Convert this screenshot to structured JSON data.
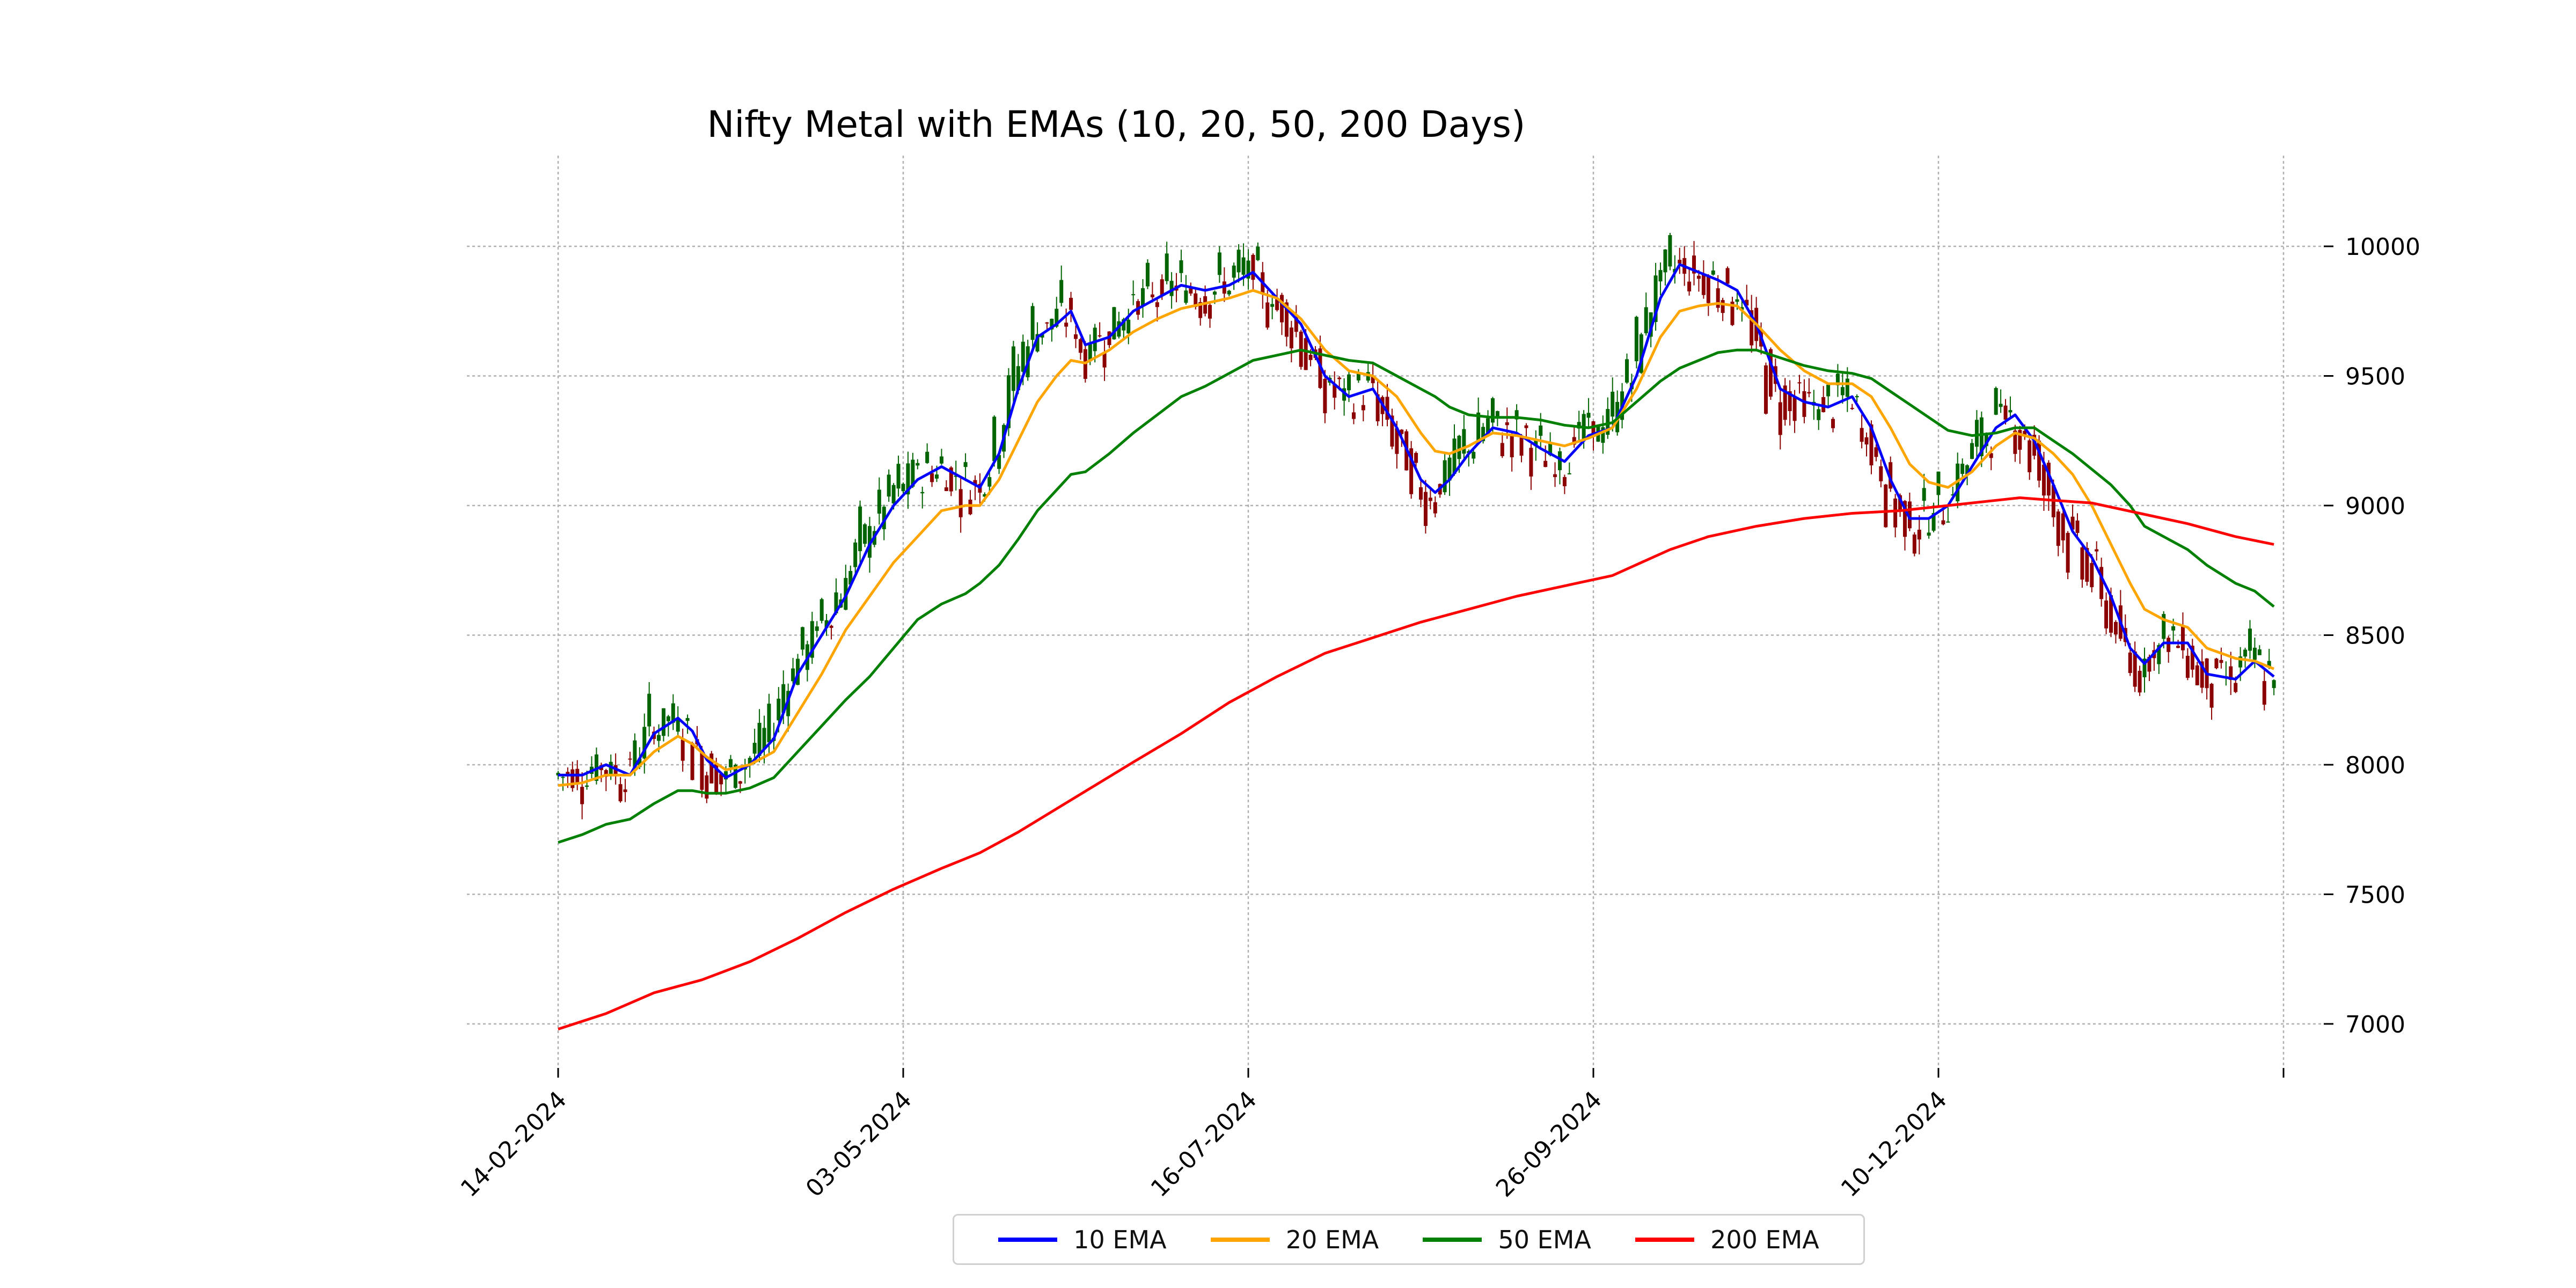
{
  "chart_data": {
    "type": "candlestick",
    "title": "Nifty Metal with EMAs (10, 20, 50, 200 Days)",
    "xlabel": "",
    "ylabel": "",
    "ylim": [
      6830,
      10350
    ],
    "yticks": [
      7000,
      7500,
      8000,
      8500,
      9000,
      9500,
      10000
    ],
    "xticks": [
      "14-02-2024",
      "03-05-2024",
      "16-07-2024",
      "26-09-2024",
      "10-12-2024",
      ""
    ],
    "grid": true,
    "legend_position": "bottom-center",
    "colors": {
      "up": "#006400",
      "down": "#8b0000",
      "grid": "#b0b0b0"
    },
    "series": [
      {
        "name": "10 EMA",
        "color": "#0000ff",
        "points": [
          [
            0,
            7960
          ],
          [
            5,
            7960
          ],
          [
            10,
            8000
          ],
          [
            15,
            7960
          ],
          [
            20,
            8120
          ],
          [
            25,
            8180
          ],
          [
            28,
            8130
          ],
          [
            31,
            8020
          ],
          [
            35,
            7950
          ],
          [
            40,
            8000
          ],
          [
            45,
            8100
          ],
          [
            50,
            8350
          ],
          [
            55,
            8500
          ],
          [
            60,
            8650
          ],
          [
            65,
            8850
          ],
          [
            70,
            9000
          ],
          [
            75,
            9100
          ],
          [
            80,
            9150
          ],
          [
            85,
            9100
          ],
          [
            88,
            9070
          ],
          [
            92,
            9200
          ],
          [
            96,
            9450
          ],
          [
            100,
            9650
          ],
          [
            104,
            9700
          ],
          [
            107,
            9750
          ],
          [
            110,
            9620
          ],
          [
            115,
            9650
          ],
          [
            120,
            9750
          ],
          [
            125,
            9800
          ],
          [
            130,
            9850
          ],
          [
            135,
            9830
          ],
          [
            140,
            9850
          ],
          [
            145,
            9900
          ],
          [
            150,
            9800
          ],
          [
            155,
            9700
          ],
          [
            160,
            9500
          ],
          [
            165,
            9420
          ],
          [
            170,
            9450
          ],
          [
            175,
            9300
          ],
          [
            180,
            9100
          ],
          [
            183,
            9050
          ],
          [
            186,
            9100
          ],
          [
            190,
            9200
          ],
          [
            195,
            9300
          ],
          [
            200,
            9280
          ],
          [
            205,
            9220
          ],
          [
            210,
            9170
          ],
          [
            215,
            9270
          ],
          [
            220,
            9300
          ],
          [
            225,
            9500
          ],
          [
            230,
            9800
          ],
          [
            234,
            9930
          ],
          [
            238,
            9900
          ],
          [
            242,
            9870
          ],
          [
            246,
            9830
          ],
          [
            250,
            9700
          ],
          [
            255,
            9450
          ],
          [
            260,
            9400
          ],
          [
            265,
            9380
          ],
          [
            270,
            9420
          ],
          [
            274,
            9300
          ],
          [
            278,
            9100
          ],
          [
            282,
            8950
          ],
          [
            286,
            8950
          ],
          [
            290,
            9000
          ],
          [
            295,
            9150
          ],
          [
            300,
            9300
          ],
          [
            304,
            9350
          ],
          [
            308,
            9250
          ],
          [
            312,
            9080
          ],
          [
            316,
            8900
          ],
          [
            320,
            8800
          ],
          [
            324,
            8650
          ],
          [
            328,
            8450
          ],
          [
            331,
            8390
          ],
          [
            335,
            8470
          ],
          [
            340,
            8470
          ],
          [
            344,
            8350
          ],
          [
            350,
            8330
          ],
          [
            354,
            8400
          ],
          [
            358,
            8340
          ]
        ]
      },
      {
        "name": "20 EMA",
        "color": "#ffa500",
        "points": [
          [
            0,
            7920
          ],
          [
            5,
            7930
          ],
          [
            10,
            7960
          ],
          [
            15,
            7960
          ],
          [
            20,
            8050
          ],
          [
            25,
            8110
          ],
          [
            28,
            8080
          ],
          [
            31,
            8030
          ],
          [
            35,
            7980
          ],
          [
            40,
            8000
          ],
          [
            45,
            8050
          ],
          [
            50,
            8200
          ],
          [
            55,
            8350
          ],
          [
            60,
            8520
          ],
          [
            65,
            8650
          ],
          [
            70,
            8780
          ],
          [
            75,
            8880
          ],
          [
            80,
            8980
          ],
          [
            85,
            9000
          ],
          [
            88,
            9000
          ],
          [
            92,
            9100
          ],
          [
            96,
            9250
          ],
          [
            100,
            9400
          ],
          [
            104,
            9500
          ],
          [
            107,
            9560
          ],
          [
            110,
            9550
          ],
          [
            115,
            9600
          ],
          [
            120,
            9670
          ],
          [
            125,
            9720
          ],
          [
            130,
            9760
          ],
          [
            135,
            9780
          ],
          [
            140,
            9800
          ],
          [
            145,
            9830
          ],
          [
            150,
            9800
          ],
          [
            155,
            9720
          ],
          [
            160,
            9600
          ],
          [
            165,
            9520
          ],
          [
            170,
            9500
          ],
          [
            175,
            9420
          ],
          [
            180,
            9280
          ],
          [
            183,
            9210
          ],
          [
            186,
            9200
          ],
          [
            190,
            9230
          ],
          [
            195,
            9280
          ],
          [
            200,
            9270
          ],
          [
            205,
            9250
          ],
          [
            210,
            9230
          ],
          [
            215,
            9260
          ],
          [
            220,
            9300
          ],
          [
            225,
            9450
          ],
          [
            230,
            9650
          ],
          [
            234,
            9750
          ],
          [
            238,
            9770
          ],
          [
            242,
            9780
          ],
          [
            246,
            9770
          ],
          [
            250,
            9700
          ],
          [
            255,
            9600
          ],
          [
            260,
            9520
          ],
          [
            265,
            9470
          ],
          [
            270,
            9470
          ],
          [
            274,
            9420
          ],
          [
            278,
            9300
          ],
          [
            282,
            9160
          ],
          [
            286,
            9090
          ],
          [
            290,
            9070
          ],
          [
            295,
            9130
          ],
          [
            300,
            9230
          ],
          [
            304,
            9280
          ],
          [
            308,
            9260
          ],
          [
            312,
            9200
          ],
          [
            316,
            9120
          ],
          [
            320,
            9000
          ],
          [
            324,
            8850
          ],
          [
            328,
            8700
          ],
          [
            331,
            8600
          ],
          [
            335,
            8560
          ],
          [
            340,
            8530
          ],
          [
            344,
            8450
          ],
          [
            350,
            8410
          ],
          [
            354,
            8400
          ],
          [
            358,
            8370
          ]
        ]
      },
      {
        "name": "50 EMA",
        "color": "#008000",
        "points": [
          [
            0,
            7700
          ],
          [
            5,
            7730
          ],
          [
            10,
            7770
          ],
          [
            15,
            7790
          ],
          [
            20,
            7850
          ],
          [
            25,
            7900
          ],
          [
            28,
            7900
          ],
          [
            31,
            7890
          ],
          [
            35,
            7890
          ],
          [
            40,
            7910
          ],
          [
            45,
            7950
          ],
          [
            50,
            8050
          ],
          [
            55,
            8150
          ],
          [
            60,
            8250
          ],
          [
            65,
            8340
          ],
          [
            70,
            8450
          ],
          [
            75,
            8560
          ],
          [
            80,
            8620
          ],
          [
            85,
            8660
          ],
          [
            88,
            8700
          ],
          [
            92,
            8770
          ],
          [
            96,
            8870
          ],
          [
            100,
            8980
          ],
          [
            104,
            9060
          ],
          [
            107,
            9120
          ],
          [
            110,
            9130
          ],
          [
            115,
            9200
          ],
          [
            120,
            9280
          ],
          [
            125,
            9350
          ],
          [
            130,
            9420
          ],
          [
            135,
            9460
          ],
          [
            140,
            9510
          ],
          [
            145,
            9560
          ],
          [
            150,
            9580
          ],
          [
            155,
            9600
          ],
          [
            160,
            9580
          ],
          [
            165,
            9560
          ],
          [
            170,
            9550
          ],
          [
            175,
            9500
          ],
          [
            180,
            9450
          ],
          [
            183,
            9420
          ],
          [
            186,
            9380
          ],
          [
            190,
            9350
          ],
          [
            195,
            9340
          ],
          [
            200,
            9340
          ],
          [
            205,
            9330
          ],
          [
            210,
            9310
          ],
          [
            215,
            9300
          ],
          [
            220,
            9320
          ],
          [
            225,
            9400
          ],
          [
            230,
            9480
          ],
          [
            234,
            9530
          ],
          [
            238,
            9560
          ],
          [
            242,
            9590
          ],
          [
            246,
            9600
          ],
          [
            250,
            9600
          ],
          [
            255,
            9570
          ],
          [
            260,
            9540
          ],
          [
            265,
            9520
          ],
          [
            270,
            9510
          ],
          [
            274,
            9490
          ],
          [
            278,
            9440
          ],
          [
            282,
            9390
          ],
          [
            286,
            9340
          ],
          [
            290,
            9290
          ],
          [
            295,
            9270
          ],
          [
            300,
            9280
          ],
          [
            304,
            9300
          ],
          [
            308,
            9300
          ],
          [
            312,
            9250
          ],
          [
            316,
            9200
          ],
          [
            320,
            9140
          ],
          [
            324,
            9080
          ],
          [
            328,
            9000
          ],
          [
            331,
            8920
          ],
          [
            335,
            8880
          ],
          [
            340,
            8830
          ],
          [
            344,
            8770
          ],
          [
            350,
            8700
          ],
          [
            354,
            8670
          ],
          [
            358,
            8610
          ]
        ]
      },
      {
        "name": "200 EMA",
        "color": "#ff0000",
        "points": [
          [
            0,
            6980
          ],
          [
            10,
            7040
          ],
          [
            20,
            7120
          ],
          [
            30,
            7170
          ],
          [
            40,
            7240
          ],
          [
            50,
            7330
          ],
          [
            60,
            7430
          ],
          [
            70,
            7520
          ],
          [
            80,
            7600
          ],
          [
            88,
            7660
          ],
          [
            96,
            7740
          ],
          [
            104,
            7830
          ],
          [
            112,
            7920
          ],
          [
            120,
            8010
          ],
          [
            130,
            8120
          ],
          [
            140,
            8240
          ],
          [
            150,
            8340
          ],
          [
            160,
            8430
          ],
          [
            170,
            8490
          ],
          [
            180,
            8550
          ],
          [
            190,
            8600
          ],
          [
            200,
            8650
          ],
          [
            210,
            8690
          ],
          [
            220,
            8730
          ],
          [
            226,
            8780
          ],
          [
            232,
            8830
          ],
          [
            240,
            8880
          ],
          [
            250,
            8920
          ],
          [
            260,
            8950
          ],
          [
            270,
            8970
          ],
          [
            280,
            8980
          ],
          [
            290,
            9000
          ],
          [
            300,
            9020
          ],
          [
            305,
            9030
          ],
          [
            312,
            9020
          ],
          [
            320,
            9010
          ],
          [
            330,
            8970
          ],
          [
            340,
            8930
          ],
          [
            350,
            8880
          ],
          [
            358,
            8850
          ]
        ]
      }
    ]
  }
}
